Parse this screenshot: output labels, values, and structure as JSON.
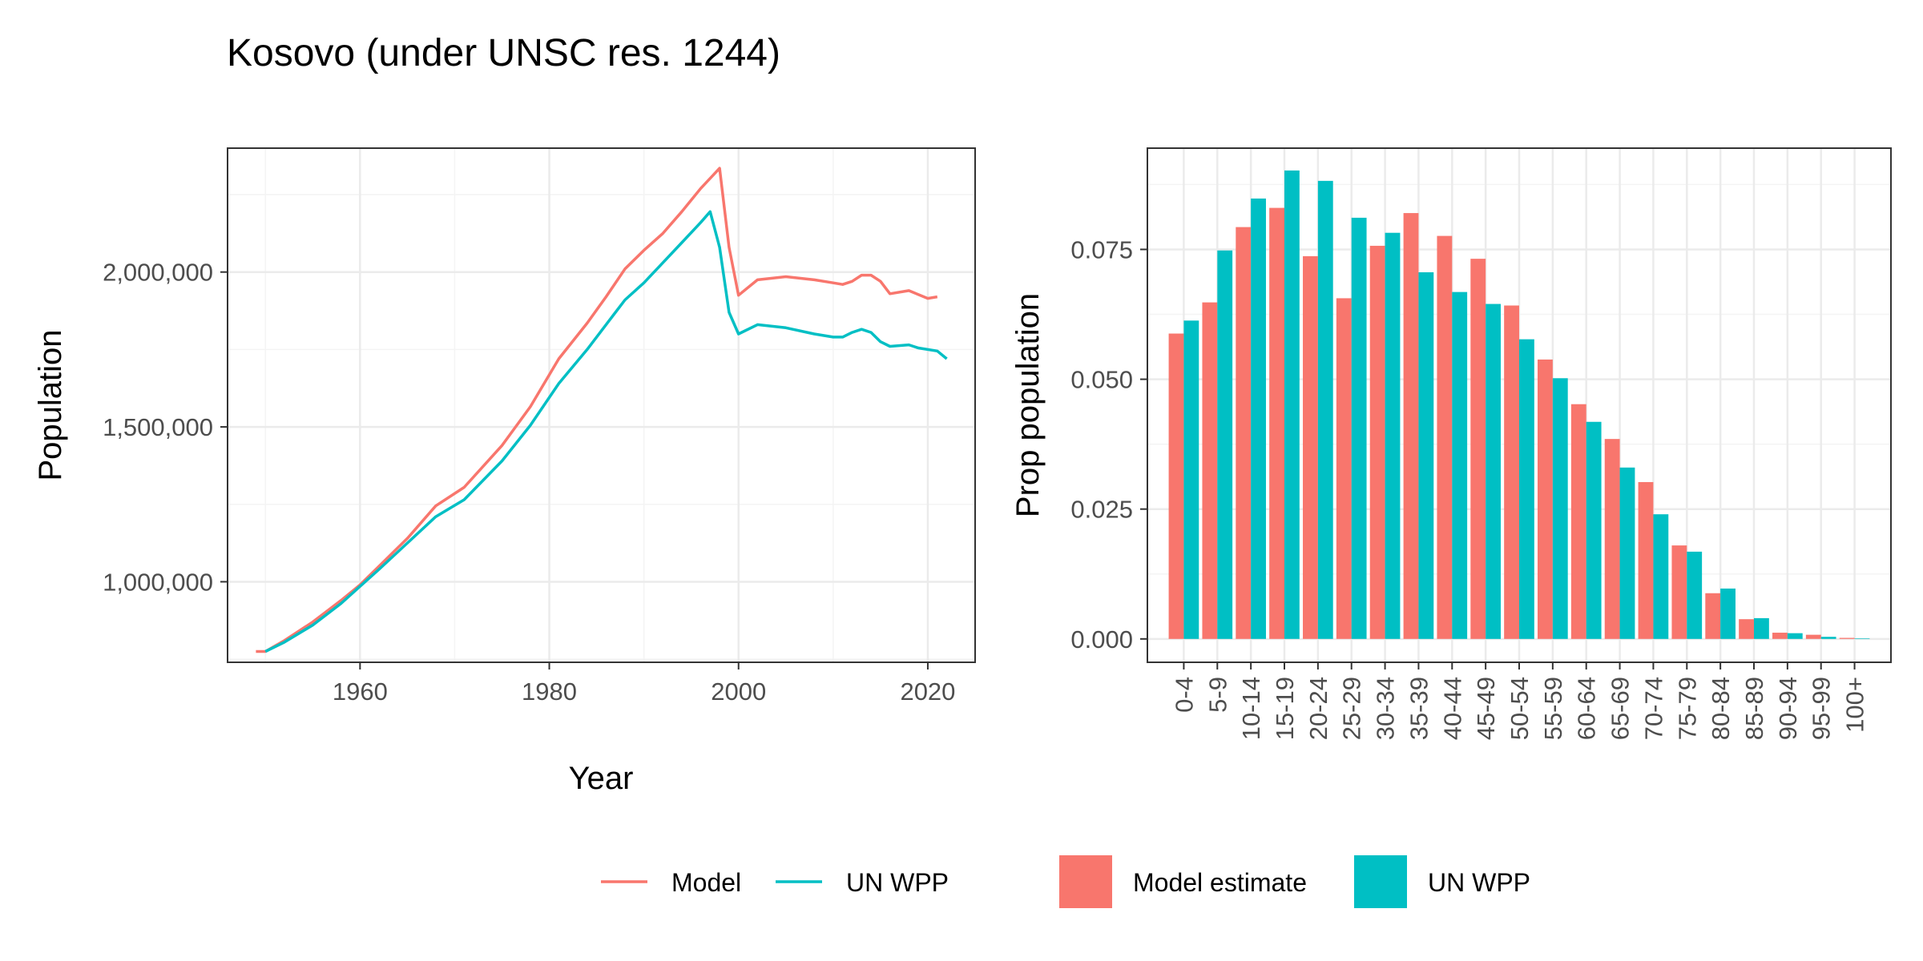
{
  "title": "Kosovo (under UNSC res. 1244)",
  "colors": {
    "model": "#F8766D",
    "unwpp": "#00BFC4"
  },
  "chart_data": [
    {
      "type": "line",
      "xlabel": "Year",
      "ylabel": "Population",
      "xlim": [
        1946,
        2025
      ],
      "ylim": [
        740000,
        2400000
      ],
      "x_ticks": [
        1960,
        1980,
        2000,
        2020
      ],
      "x_tick_labels": [
        "1960",
        "1980",
        "2000",
        "2020"
      ],
      "y_ticks": [
        1000000,
        1500000,
        2000000
      ],
      "y_tick_labels": [
        "1,000,000",
        "1,500,000",
        "2,000,000"
      ],
      "grid": true,
      "legend_position": "bottom",
      "series": [
        {
          "name": "Model",
          "color": "#F8766D",
          "x": [
            1949,
            1950,
            1952,
            1955,
            1958,
            1960,
            1962,
            1965,
            1968,
            1971,
            1975,
            1978,
            1981,
            1984,
            1986,
            1988,
            1990,
            1992,
            1994,
            1996,
            1998,
            1999,
            2000,
            2002,
            2005,
            2008,
            2010,
            2011,
            2012,
            2013,
            2014,
            2015,
            2016,
            2018,
            2020,
            2021
          ],
          "y": [
            775000,
            775000,
            810000,
            870000,
            940000,
            990000,
            1050000,
            1140000,
            1245000,
            1305000,
            1440000,
            1565000,
            1720000,
            1835000,
            1920000,
            2010000,
            2070000,
            2125000,
            2195000,
            2270000,
            2335000,
            2080000,
            1925000,
            1975000,
            1985000,
            1975000,
            1965000,
            1960000,
            1970000,
            1990000,
            1990000,
            1970000,
            1930000,
            1940000,
            1915000,
            1920000
          ]
        },
        {
          "name": "UN WPP",
          "color": "#00BFC4",
          "x": [
            1950,
            1952,
            1955,
            1958,
            1960,
            1962,
            1965,
            1968,
            1971,
            1975,
            1978,
            1981,
            1984,
            1986,
            1988,
            1990,
            1992,
            1994,
            1996,
            1997,
            1998,
            1999,
            2000,
            2002,
            2005,
            2008,
            2010,
            2011,
            2012,
            2013,
            2014,
            2015,
            2016,
            2018,
            2019,
            2021,
            2022
          ],
          "y": [
            775000,
            805000,
            860000,
            930000,
            985000,
            1040000,
            1125000,
            1210000,
            1265000,
            1390000,
            1505000,
            1640000,
            1750000,
            1830000,
            1910000,
            1965000,
            2030000,
            2095000,
            2160000,
            2195000,
            2080000,
            1870000,
            1800000,
            1830000,
            1820000,
            1800000,
            1790000,
            1790000,
            1805000,
            1815000,
            1805000,
            1775000,
            1760000,
            1765000,
            1755000,
            1745000,
            1720000
          ]
        }
      ]
    },
    {
      "type": "bar",
      "xlabel": "",
      "ylabel": "Prop population",
      "ylim": [
        -0.0045,
        0.0945
      ],
      "y_ticks": [
        0,
        0.025,
        0.05,
        0.075
      ],
      "y_tick_labels": [
        "0.000",
        "0.025",
        "0.050",
        "0.075"
      ],
      "grid": true,
      "legend_position": "bottom",
      "categories": [
        "0-4",
        "5-9",
        "10-14",
        "15-19",
        "20-24",
        "25-29",
        "30-34",
        "35-39",
        "40-44",
        "45-49",
        "50-54",
        "55-59",
        "60-64",
        "65-69",
        "70-74",
        "75-79",
        "80-84",
        "85-89",
        "90-94",
        "95-99",
        "100+"
      ],
      "series": [
        {
          "name": "Model estimate",
          "color": "#F8766D",
          "values": [
            0.0588,
            0.0648,
            0.0793,
            0.083,
            0.0737,
            0.0656,
            0.0757,
            0.082,
            0.0776,
            0.0732,
            0.0642,
            0.0538,
            0.0452,
            0.0385,
            0.0302,
            0.018,
            0.0088,
            0.0038,
            0.0012,
            0.0008,
            0.0002
          ]
        },
        {
          "name": "UN WPP",
          "color": "#00BFC4",
          "values": [
            0.0613,
            0.0748,
            0.0848,
            0.0902,
            0.0882,
            0.0811,
            0.0782,
            0.0706,
            0.0668,
            0.0645,
            0.0577,
            0.0502,
            0.0418,
            0.033,
            0.024,
            0.0168,
            0.0097,
            0.004,
            0.0011,
            0.0004,
            0.0001
          ]
        }
      ]
    }
  ],
  "legend": {
    "line_items": [
      {
        "label": "Model",
        "color": "#F8766D"
      },
      {
        "label": "UN WPP",
        "color": "#00BFC4"
      }
    ],
    "bar_items": [
      {
        "label": "Model estimate",
        "color": "#F8766D"
      },
      {
        "label": "UN WPP",
        "color": "#00BFC4"
      }
    ]
  }
}
